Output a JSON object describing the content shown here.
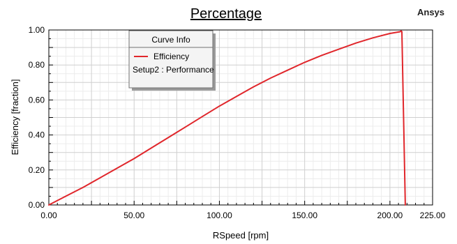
{
  "brand": {
    "name": "Ansys"
  },
  "chart_data": {
    "type": "line",
    "title": "Percentage",
    "xlabel": "RSpeed [rpm]",
    "ylabel": "Efficiency [fraction]",
    "xlim": [
      0,
      225
    ],
    "ylim": [
      0,
      1
    ],
    "x_ticks": [
      "0.00",
      "50.00",
      "100.00",
      "150.00",
      "200.00",
      "225.00"
    ],
    "y_ticks": [
      "0.00",
      "0.20",
      "0.40",
      "0.60",
      "0.80",
      "1.00"
    ],
    "grid": true,
    "legend": {
      "title": "Curve Info",
      "placement": "top-left",
      "entries": [
        {
          "name": "Efficiency",
          "detail": "Setup2 : Performance",
          "color": "#e0262b"
        }
      ]
    },
    "series": [
      {
        "name": "Efficiency",
        "color": "#e0262b",
        "x": [
          0,
          10,
          20,
          30,
          40,
          50,
          60,
          70,
          80,
          90,
          100,
          110,
          120,
          130,
          140,
          150,
          160,
          170,
          180,
          190,
          200,
          206,
          206.5,
          207,
          209
        ],
        "y": [
          0,
          0.05,
          0.1,
          0.155,
          0.21,
          0.265,
          0.325,
          0.385,
          0.445,
          0.505,
          0.565,
          0.62,
          0.675,
          0.725,
          0.77,
          0.815,
          0.855,
          0.89,
          0.925,
          0.955,
          0.98,
          0.99,
          0.995,
          0.99,
          0
        ]
      }
    ]
  }
}
